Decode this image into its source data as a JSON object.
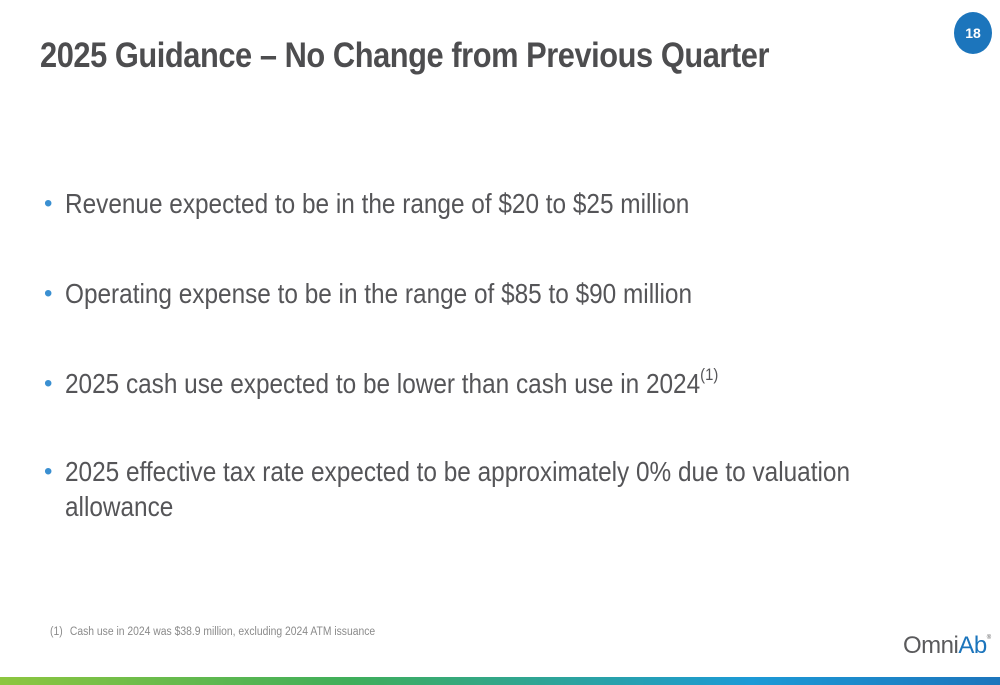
{
  "slide": {
    "title": "2025 Guidance – No Change from Previous Quarter",
    "page_number": "18",
    "bullets": [
      {
        "text": "Revenue expected to be in the range of $20 to $25 million",
        "sup": ""
      },
      {
        "text": "Operating expense to be in the range of $85 to $90 million",
        "sup": ""
      },
      {
        "text": "2025 cash use expected to be lower than cash use in 2024",
        "sup": "(1)"
      },
      {
        "text": "2025 effective tax rate expected to be approximately 0% due to valuation allowance",
        "sup": ""
      }
    ],
    "bullet_marker": "•",
    "footnote": {
      "marker": "(1)",
      "text": "Cash use in 2024 was $38.9 million, excluding 2024 ATM issuance"
    },
    "logo": {
      "part1": "Omni",
      "part2": "Ab",
      "registered": "®"
    }
  },
  "colors": {
    "accent_blue": "#1c75bc",
    "bullet_blue": "#3a8fd1",
    "bar_green": "#8dc63f",
    "title_gray": "#4d4d4f"
  }
}
